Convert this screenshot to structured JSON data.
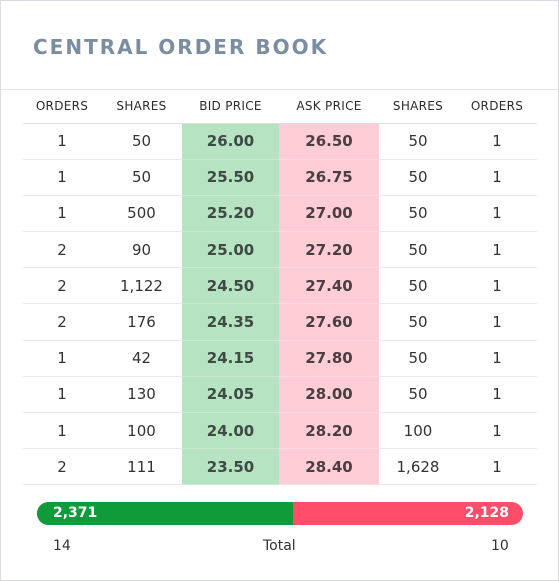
{
  "title": "CENTRAL ORDER BOOK",
  "columns": [
    "ORDERS",
    "SHARES",
    "BID PRICE",
    "ASK PRICE",
    "SHARES",
    "ORDERS"
  ],
  "rows": [
    [
      "1",
      "50",
      "26.00",
      "26.50",
      "50",
      "1"
    ],
    [
      "1",
      "50",
      "25.50",
      "26.75",
      "50",
      "1"
    ],
    [
      "1",
      "500",
      "25.20",
      "27.00",
      "50",
      "1"
    ],
    [
      "2",
      "90",
      "25.00",
      "27.20",
      "50",
      "1"
    ],
    [
      "2",
      "1,122",
      "24.50",
      "27.40",
      "50",
      "1"
    ],
    [
      "2",
      "176",
      "24.35",
      "27.60",
      "50",
      "1"
    ],
    [
      "1",
      "42",
      "24.15",
      "27.80",
      "50",
      "1"
    ],
    [
      "1",
      "130",
      "24.05",
      "28.00",
      "50",
      "1"
    ],
    [
      "1",
      "100",
      "24.00",
      "28.20",
      "100",
      "1"
    ],
    [
      "2",
      "111",
      "23.50",
      "28.40",
      "1,628",
      "1"
    ]
  ],
  "totals": {
    "bid_shares": "2,371",
    "ask_shares": "2,128",
    "bid_fraction": 0.527,
    "bid_orders": "14",
    "label": "Total",
    "ask_orders": "10"
  },
  "colors": {
    "bid_cell": "#b6e3c2",
    "ask_cell": "#ffcdd5",
    "bid_bar": "#0f9b3a",
    "ask_bar": "#ff4d6a",
    "title": "#7b8da0"
  }
}
